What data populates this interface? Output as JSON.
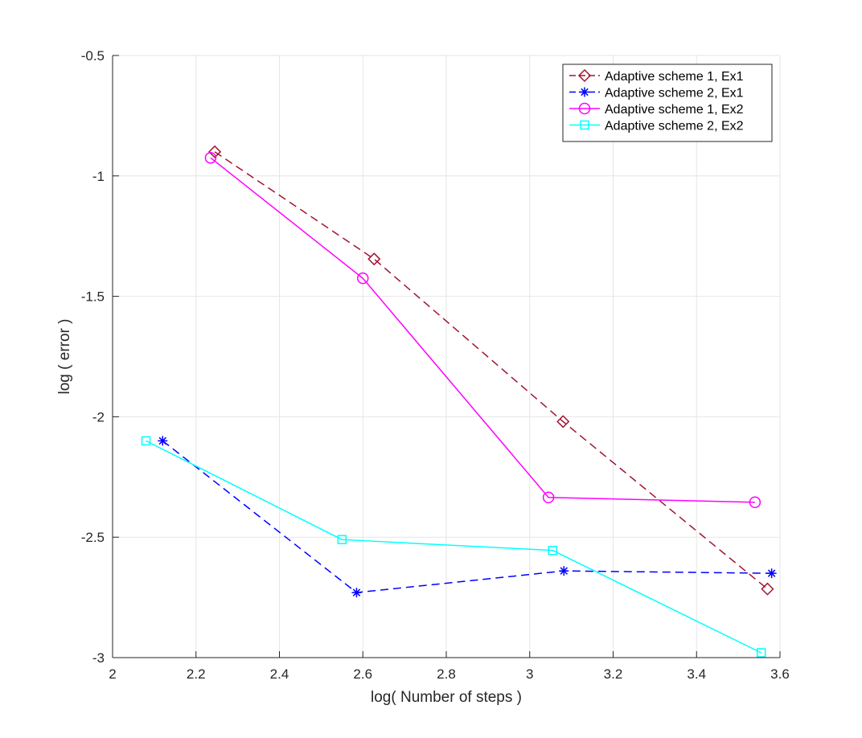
{
  "chart_data": {
    "type": "line",
    "xlabel": "log( Number of steps )",
    "ylabel": "log ( error )",
    "xlim": [
      2,
      3.6
    ],
    "ylim": [
      -3,
      -0.5
    ],
    "xticks": [
      2,
      2.2,
      2.4,
      2.6,
      2.8,
      3,
      3.2,
      3.4,
      3.6
    ],
    "xtick_labels": [
      "2",
      "2.2",
      "2.4",
      "2.6",
      "2.8",
      "3",
      "3.2",
      "3.4",
      "3.6"
    ],
    "yticks": [
      -3,
      -2.5,
      -2,
      -1.5,
      -1,
      -0.5
    ],
    "ytick_labels": [
      "-3",
      "-2.5",
      "-2",
      "-1.5",
      "-1",
      "-0.5"
    ],
    "grid": true,
    "legend_position": "top-right",
    "series": [
      {
        "name": "Adaptive scheme 1, Ex1",
        "color": "#a2142f",
        "line_style": "dashed",
        "marker": "diamond",
        "x": [
          2.245,
          2.627,
          3.08,
          3.57
        ],
        "y": [
          -0.9,
          -1.345,
          -2.02,
          -2.715
        ]
      },
      {
        "name": "Adaptive scheme 2, Ex1",
        "color": "#0000ff",
        "line_style": "dashed",
        "marker": "asterisk",
        "x": [
          2.12,
          2.585,
          3.082,
          3.58
        ],
        "y": [
          -2.1,
          -2.73,
          -2.64,
          -2.65
        ]
      },
      {
        "name": "Adaptive scheme 1, Ex2",
        "color": "#ff00ff",
        "line_style": "solid",
        "marker": "circle",
        "x": [
          2.235,
          2.6,
          3.045,
          3.54
        ],
        "y": [
          -0.925,
          -1.425,
          -2.335,
          -2.355
        ]
      },
      {
        "name": "Adaptive scheme 2, Ex2",
        "color": "#00ffff",
        "line_style": "solid",
        "marker": "square",
        "x": [
          2.08,
          2.55,
          3.055,
          3.555
        ],
        "y": [
          -2.1,
          -2.51,
          -2.555,
          -2.98
        ]
      }
    ]
  }
}
